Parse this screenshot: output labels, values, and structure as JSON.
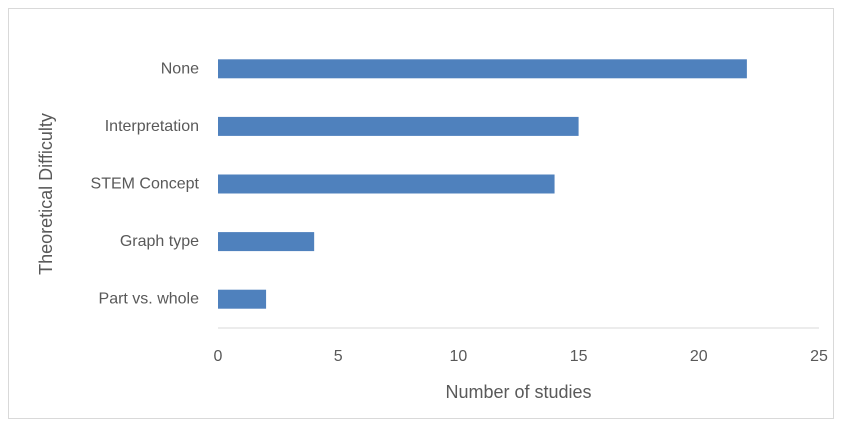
{
  "chart_data": {
    "type": "bar",
    "orientation": "horizontal",
    "categories": [
      "None",
      "Interpretation",
      "STEM Concept",
      "Graph type",
      "Part vs. whole"
    ],
    "values": [
      22,
      15,
      14,
      4,
      2
    ],
    "xlabel": "Number of studies",
    "ylabel": "Theoretical Difficulty",
    "xlim": [
      0,
      25
    ],
    "xticks": [
      0,
      5,
      10,
      15,
      20,
      25
    ],
    "grid": false,
    "bar_color": "#4f81bd",
    "axis_color": "#d9d9d9",
    "text_color": "#595959"
  }
}
